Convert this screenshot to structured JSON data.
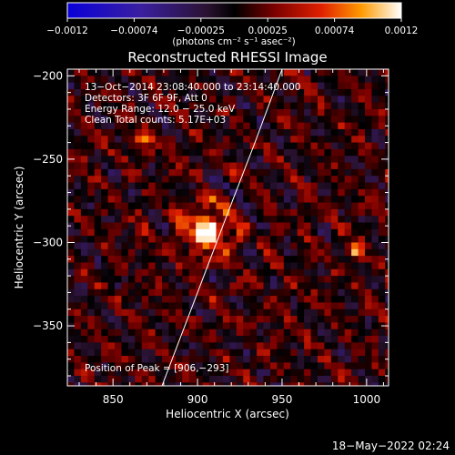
{
  "chart_data": {
    "type": "heatmap",
    "title": "Reconstructed RHESSI Image",
    "xlabel": "Heliocentric X (arcsec)",
    "ylabel": "Heliocentric Y (arcsec)",
    "xlim": [
      823,
      1013
    ],
    "ylim": [
      -386,
      -196
    ],
    "x_ticks": [
      850,
      900,
      950,
      1000
    ],
    "y_ticks": [
      -200,
      -250,
      -300,
      -350
    ],
    "x_tick_labels": [
      "850",
      "900",
      "950",
      "1000"
    ],
    "y_tick_labels": [
      "−200",
      "−250",
      "−300",
      "−350"
    ],
    "colorbar": {
      "range": [
        -0.0012,
        0.0012
      ],
      "tick_labels": [
        "−0.0012",
        "−0.00074",
        "−0.00025",
        "0.00025",
        "0.00074",
        "0.0012"
      ],
      "label": "(photons cm⁻² s⁻¹ asec⁻²)"
    },
    "annotations": [
      "13−Oct−2014 23:08:40.000 to 23:14:40.000",
      "Detectors: 3F 6F 9F, Att 0",
      "Energy Range: 12.0 − 25.0 keV",
      "Clean     Total counts: 5.17E+03"
    ],
    "peak_label": "Position of Peak = [906,−293]",
    "peak": [
      906,
      -293
    ],
    "secondary_sources": [
      {
        "x": 869,
        "y": -238,
        "value": 0.00085
      },
      {
        "x": 993,
        "y": -306,
        "value": 0.0007
      }
    ],
    "limb_curve": [
      [
        879,
        -386
      ],
      [
        900,
        -330
      ],
      [
        918,
        -282
      ],
      [
        934,
        -240
      ],
      [
        950,
        -196
      ]
    ]
  },
  "footer": {
    "timestamp": "18−May−2022 02:24"
  }
}
